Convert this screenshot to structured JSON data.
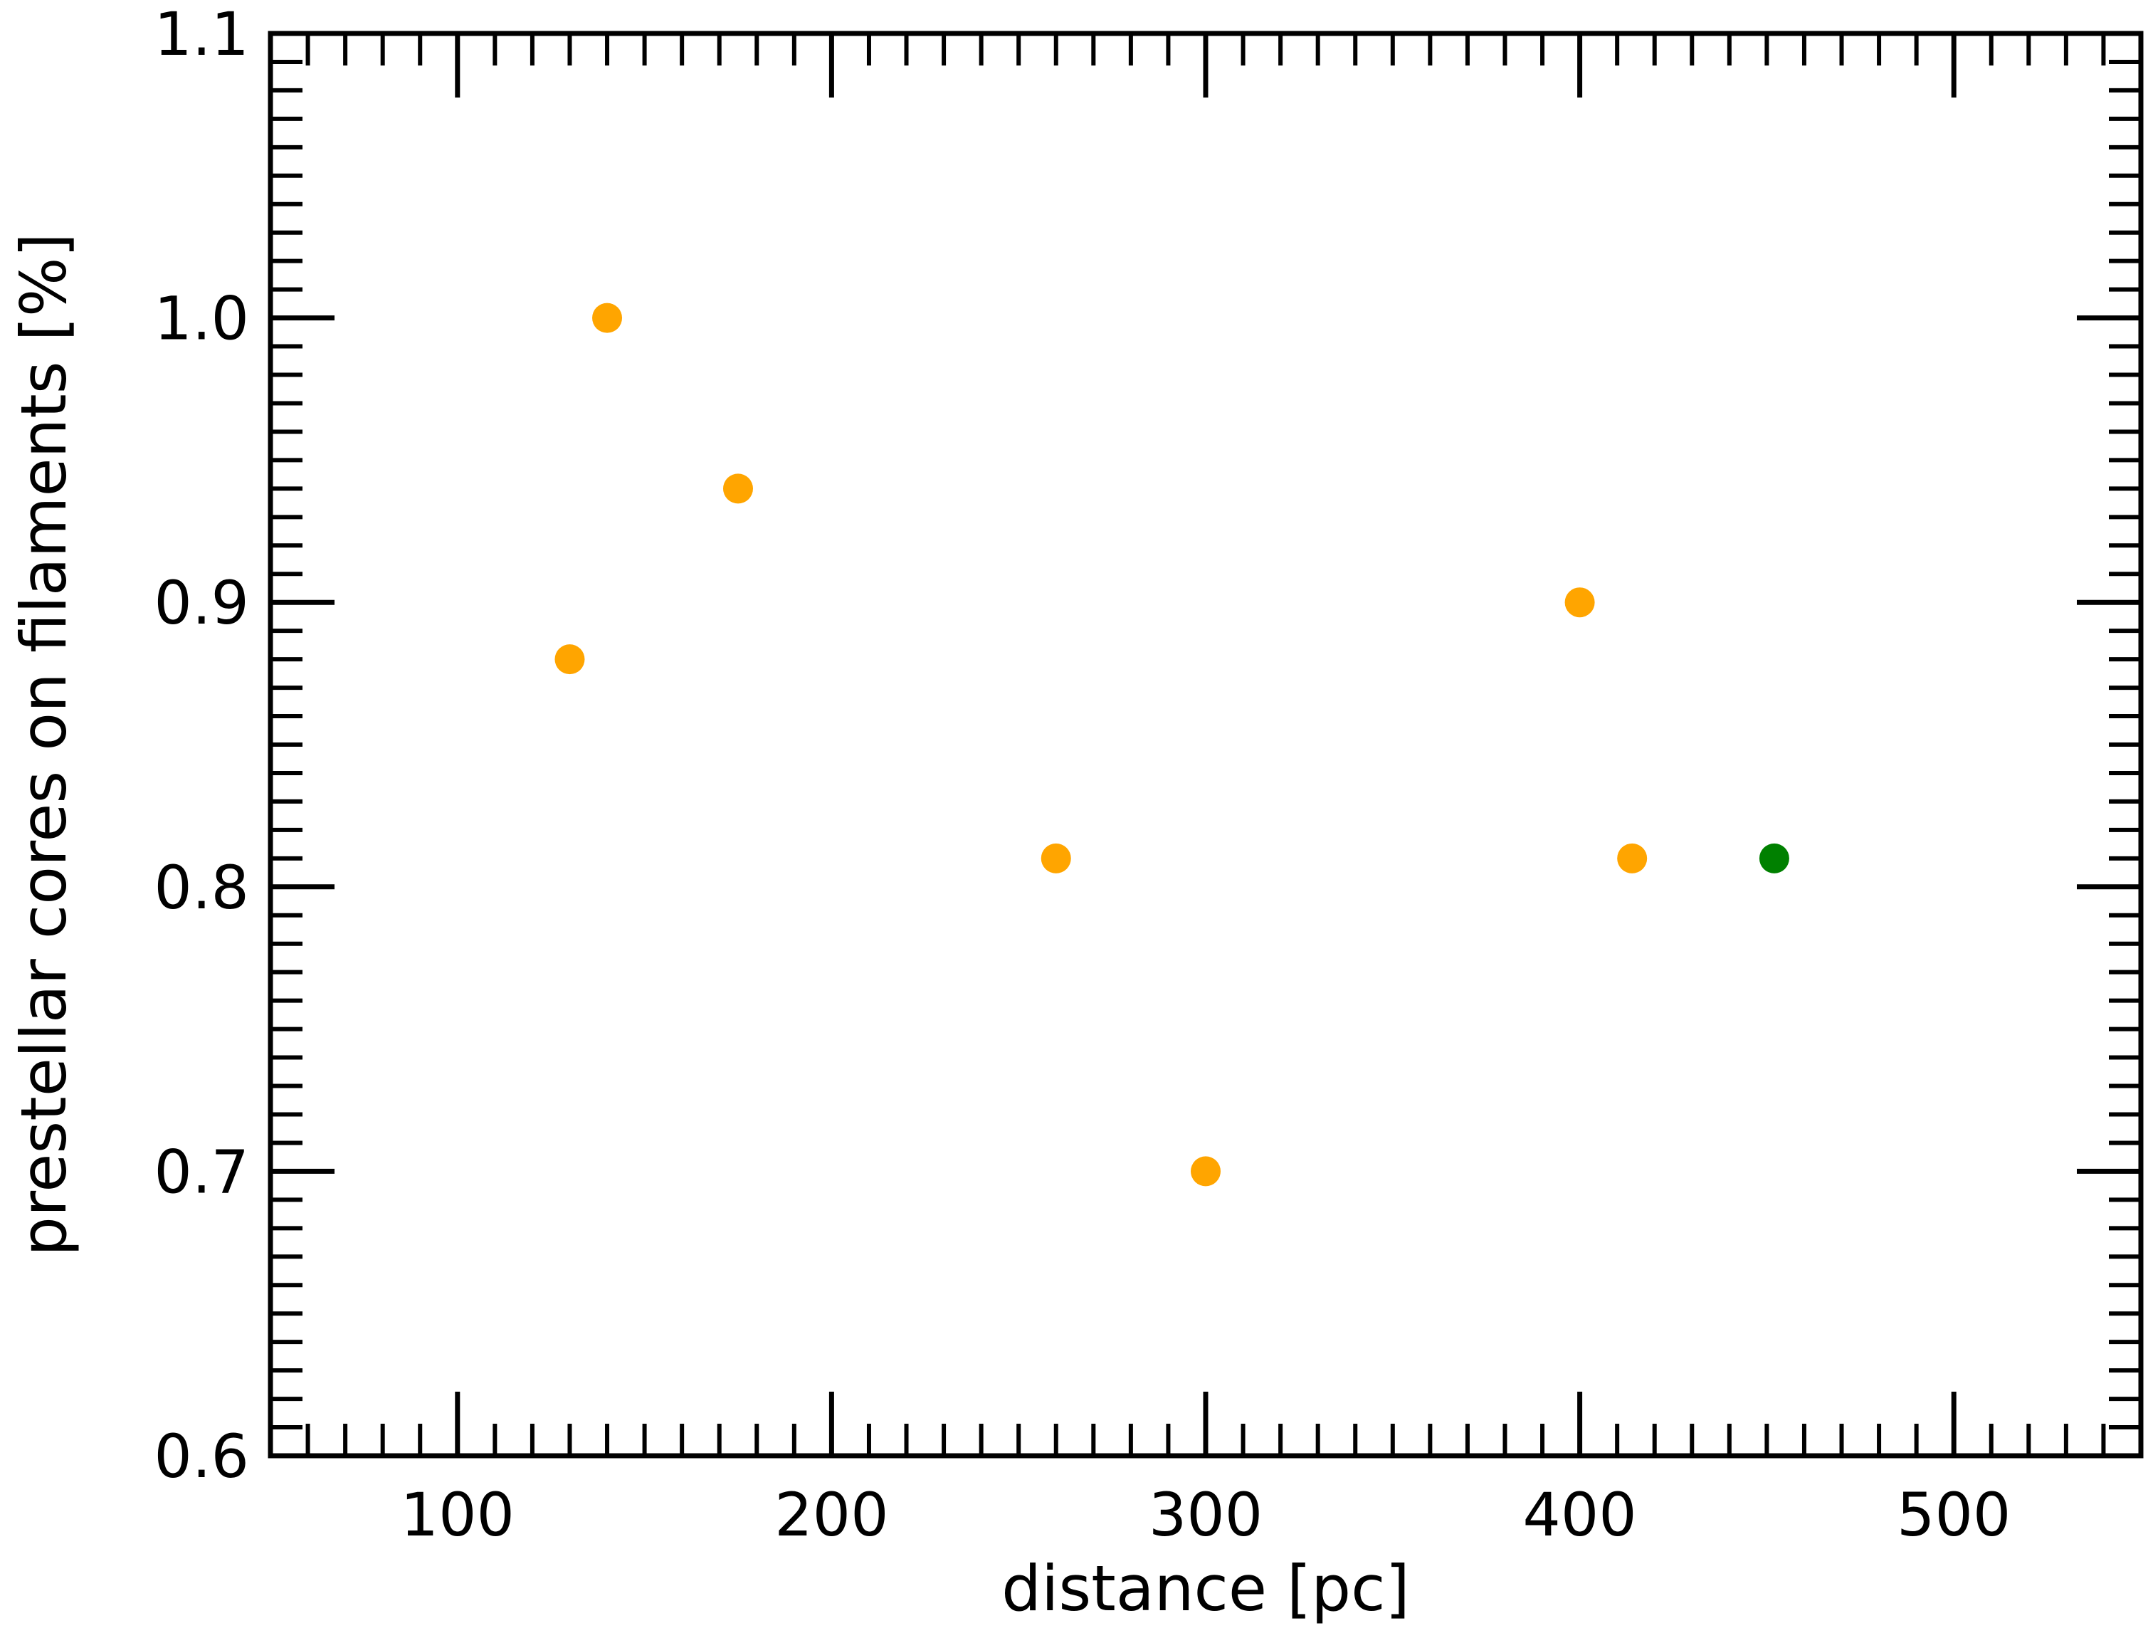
{
  "chart_data": {
    "type": "scatter",
    "title": "",
    "xlabel": "distance [pc]",
    "ylabel": "prestellar cores on filaments [%]",
    "xlim": [
      50,
      550
    ],
    "ylim": [
      0.6,
      1.1
    ],
    "xticks": [
      100,
      200,
      300,
      400,
      500
    ],
    "xtick_labels": [
      "100",
      "200",
      "300",
      "400",
      "500"
    ],
    "yticks": [
      0.6,
      0.7,
      0.8,
      0.9,
      1.0,
      1.1
    ],
    "ytick_labels": [
      "0.6",
      "0.7",
      "0.8",
      "0.9",
      "1.0",
      "1.1"
    ],
    "grid": false,
    "points": [
      {
        "x": 130,
        "y": 0.88,
        "color": "#ffa500"
      },
      {
        "x": 140,
        "y": 1.0,
        "color": "#ffa500"
      },
      {
        "x": 175,
        "y": 0.94,
        "color": "#ffa500"
      },
      {
        "x": 260,
        "y": 0.81,
        "color": "#ffa500"
      },
      {
        "x": 300,
        "y": 0.7,
        "color": "#ffa500"
      },
      {
        "x": 400,
        "y": 0.9,
        "color": "#ffa500"
      },
      {
        "x": 414,
        "y": 0.81,
        "color": "#ffa500"
      },
      {
        "x": 452,
        "y": 0.81,
        "color": "#008000"
      }
    ]
  }
}
